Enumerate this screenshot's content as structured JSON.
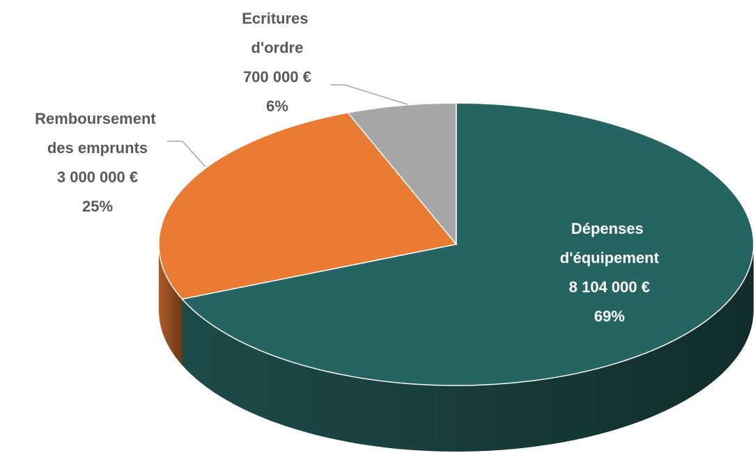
{
  "chart_data": {
    "type": "pie3d",
    "categories": [
      "Dépenses d'équipement",
      "Remboursement des emprunts",
      "Ecritures d'ordre"
    ],
    "values": [
      8104000,
      3000000,
      700000
    ],
    "value_labels": [
      "8 104 000 €",
      "3 000 000 €",
      "700 000 €"
    ],
    "percentages": [
      69,
      25,
      6
    ],
    "percentage_labels": [
      "69%",
      "25%",
      "6%"
    ],
    "colors": [
      "#266462",
      "#e97b32",
      "#a6a6a6"
    ]
  }
}
